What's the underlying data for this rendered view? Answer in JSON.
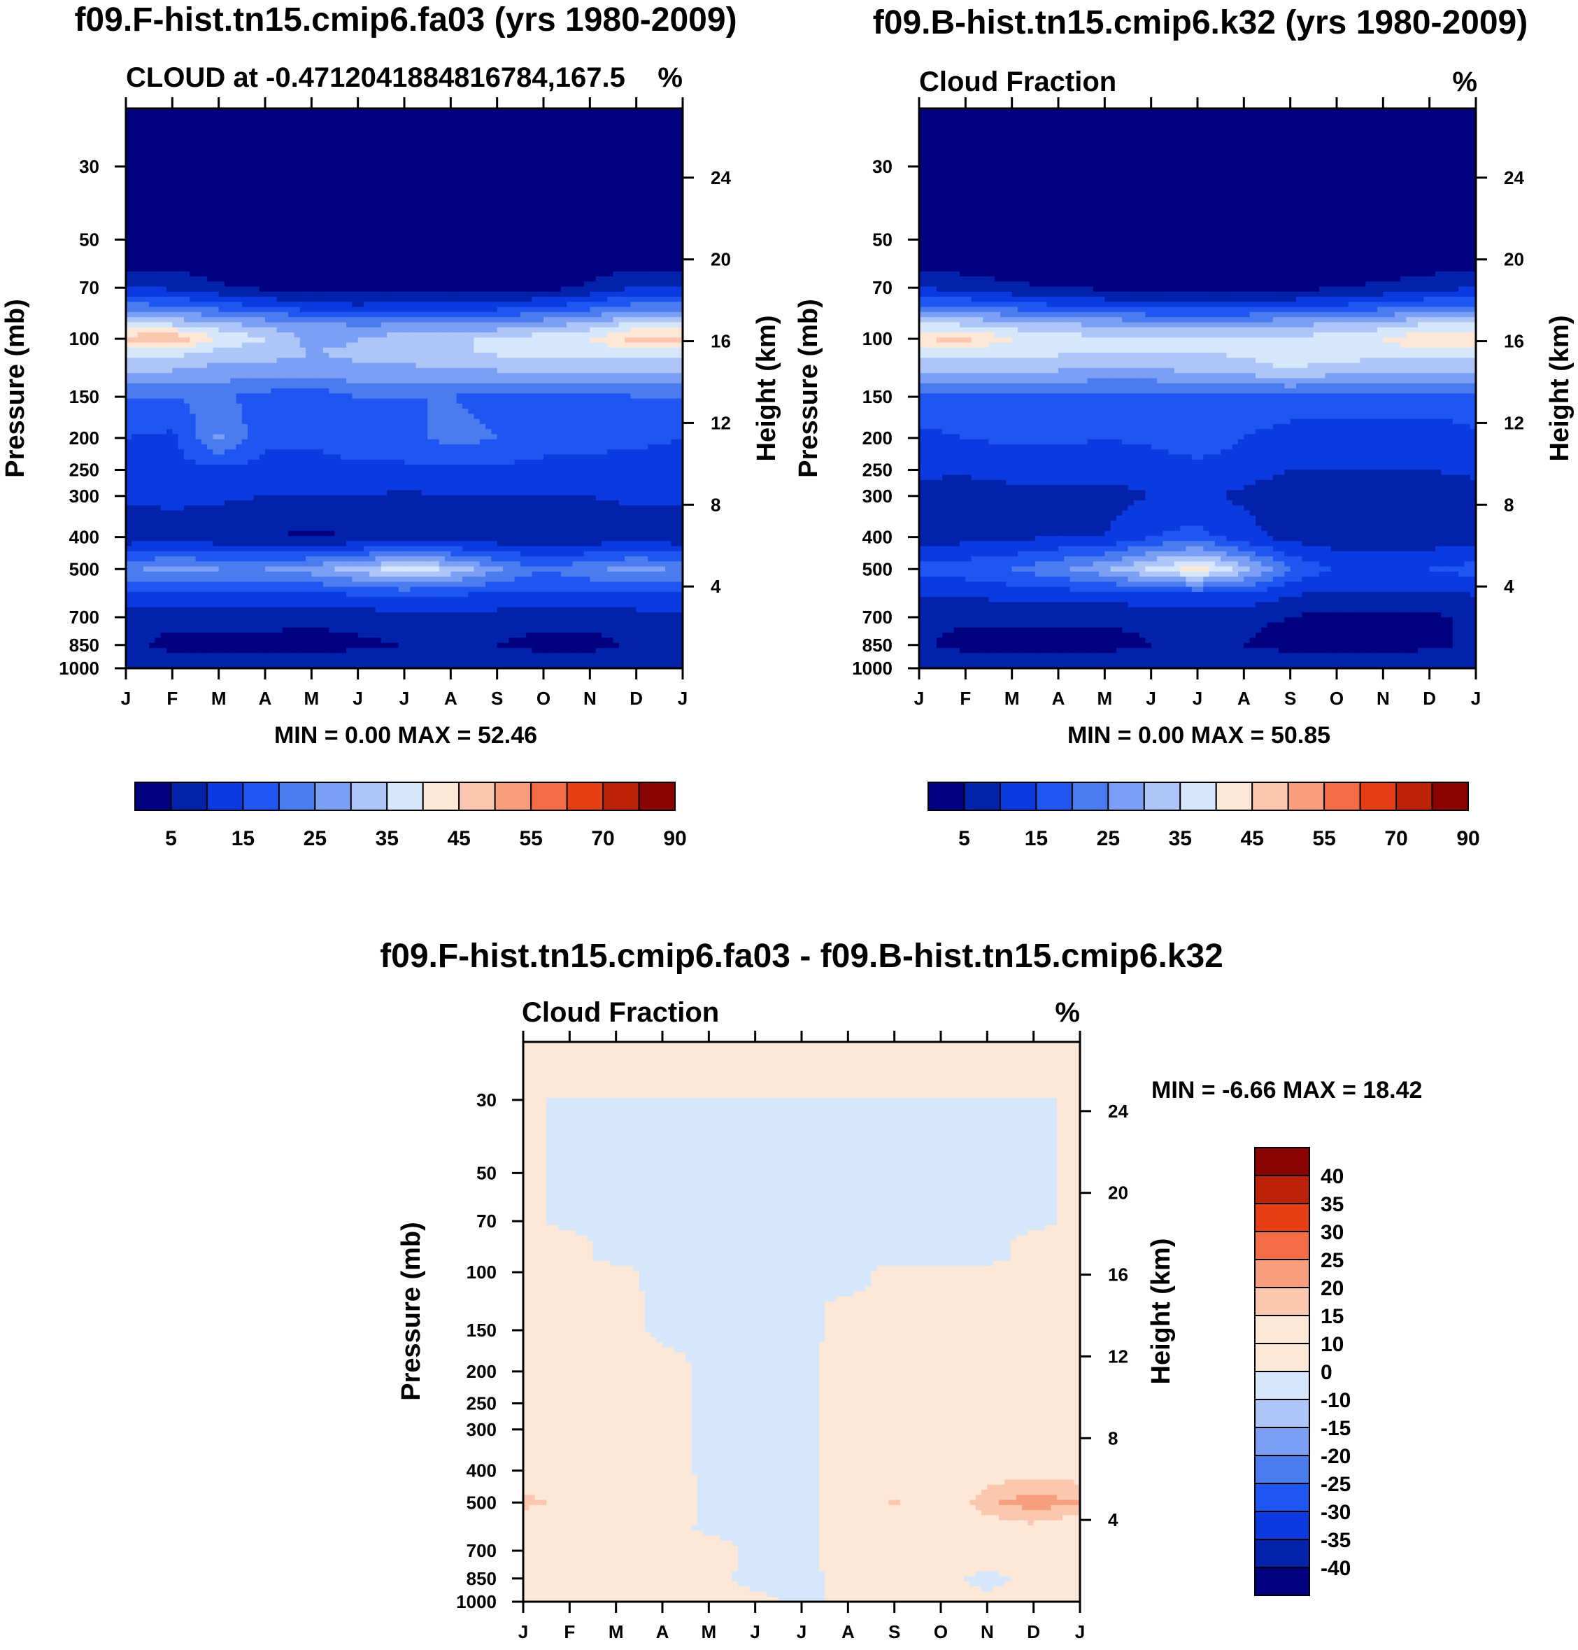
{
  "colors": {
    "abs_palette": [
      "#01017f",
      "#0222ab",
      "#0a3ae0",
      "#1f56f2",
      "#4a7cf0",
      "#7b9ff4",
      "#adc6f7",
      "#d6e7fb",
      "#fde7d7",
      "#fbc8af",
      "#f79f7c",
      "#f36c45",
      "#e63d14",
      "#bb2207",
      "#8a0303"
    ],
    "diff_palette": [
      "#01017f",
      "#0222ab",
      "#0a3ae0",
      "#1f56f2",
      "#4a7cf0",
      "#7b9ff4",
      "#adc6f7",
      "#d6e7fb",
      "#fde7d7",
      "#fbc8af",
      "#f79f7c",
      "#f36c45",
      "#e63d14",
      "#bb2207",
      "#8a0303"
    ]
  },
  "chart_data": [
    {
      "type": "heatmap",
      "id": "panel-a",
      "title": "f09.F-hist.tn15.cmip6.fa03 (yrs 1980-2009)",
      "subtitle_left": "CLOUD at -0.4712041884816784,167.5",
      "subtitle_right": "%",
      "ylabel": "Pressure (mb)",
      "ylabel_right": "Height (km)",
      "x": [
        "J",
        "F",
        "M",
        "A",
        "M",
        "J",
        "J",
        "A",
        "S",
        "O",
        "N",
        "D",
        "J"
      ],
      "y_ticks": [
        "30",
        "50",
        "70",
        "100",
        "150",
        "200",
        "250",
        "300",
        "400",
        "500",
        "700",
        "850",
        "1000"
      ],
      "y_ticks_right": [
        "24",
        "20",
        "16",
        "12",
        "8",
        "4"
      ],
      "ylim_mb": [
        20,
        1000
      ],
      "levels": [
        5,
        10,
        15,
        20,
        25,
        30,
        35,
        40,
        45,
        50,
        55,
        60,
        70,
        80,
        90
      ],
      "colorbar_ticks": [
        "5",
        "15",
        "25",
        "35",
        "45",
        "55",
        "70",
        "90"
      ],
      "min_label": "MIN =   0.00 MAX =  52.46",
      "profile_mb": [
        20,
        30,
        50,
        60,
        70,
        80,
        90,
        100,
        110,
        125,
        150,
        200,
        250,
        300,
        400,
        500,
        600,
        700,
        850,
        1000
      ],
      "values": [
        [
          0,
          0,
          0,
          4,
          10,
          22,
          35,
          48,
          38,
          30,
          20,
          15,
          13,
          11,
          6,
          24,
          14,
          8,
          7,
          10
        ],
        [
          0,
          0,
          0,
          4,
          9,
          21,
          34,
          50,
          37,
          30,
          20,
          14,
          13,
          11,
          8,
          27,
          14,
          7,
          3,
          10
        ],
        [
          0,
          0,
          0,
          2,
          6,
          18,
          31,
          40,
          33,
          28,
          21,
          26,
          14,
          11,
          6,
          25,
          13,
          7,
          3,
          10
        ],
        [
          0,
          0,
          0,
          0,
          4,
          15,
          28,
          35,
          32,
          28,
          18,
          16,
          13,
          10,
          5,
          25,
          13,
          7,
          3,
          10
        ],
        [
          0,
          0,
          0,
          0,
          3,
          12,
          27,
          28,
          30,
          28,
          16,
          16,
          13,
          10,
          4,
          28,
          13,
          7,
          2,
          10
        ],
        [
          0,
          0,
          0,
          0,
          2,
          11,
          24,
          30,
          31,
          29,
          20,
          18,
          14,
          10,
          5,
          32,
          15,
          7,
          4,
          10
        ],
        [
          0,
          0,
          0,
          0,
          2,
          12,
          25,
          33,
          32,
          29,
          20,
          18,
          14,
          9,
          5,
          38,
          15,
          8,
          5,
          10
        ],
        [
          0,
          0,
          0,
          0,
          2,
          12,
          25,
          34,
          34,
          29,
          20,
          22,
          14,
          10,
          5,
          34,
          15,
          8,
          5,
          10
        ],
        [
          0,
          0,
          0,
          0,
          3,
          13,
          26,
          36,
          36,
          30,
          18,
          20,
          14,
          10,
          6,
          26,
          14,
          8,
          5,
          10
        ],
        [
          0,
          0,
          0,
          0,
          3,
          15,
          28,
          38,
          36,
          30,
          18,
          18,
          13,
          10,
          6,
          20,
          14,
          7,
          3,
          10
        ],
        [
          0,
          0,
          0,
          2,
          6,
          18,
          31,
          40,
          36,
          31,
          18,
          17,
          13,
          10,
          6,
          24,
          14,
          7,
          3,
          10
        ],
        [
          0,
          0,
          0,
          4,
          10,
          22,
          36,
          48,
          38,
          30,
          20,
          16,
          13,
          11,
          7,
          27,
          14,
          8,
          6,
          10
        ],
        [
          0,
          0,
          0,
          4,
          10,
          22,
          35,
          48,
          38,
          30,
          20,
          15,
          13,
          11,
          6,
          24,
          14,
          8,
          7,
          10
        ]
      ]
    },
    {
      "type": "heatmap",
      "id": "panel-b",
      "title": "f09.B-hist.tn15.cmip6.k32 (yrs 1980-2009)",
      "subtitle_left": "Cloud Fraction",
      "subtitle_right": "%",
      "ylabel": "Pressure (mb)",
      "ylabel_right": "Height (km)",
      "x": [
        "J",
        "F",
        "M",
        "A",
        "M",
        "J",
        "J",
        "A",
        "S",
        "O",
        "N",
        "D",
        "J"
      ],
      "y_ticks": [
        "30",
        "50",
        "70",
        "100",
        "150",
        "200",
        "250",
        "300",
        "400",
        "500",
        "700",
        "850",
        "1000"
      ],
      "y_ticks_right": [
        "24",
        "20",
        "16",
        "12",
        "8",
        "4"
      ],
      "ylim_mb": [
        20,
        1000
      ],
      "levels": [
        5,
        10,
        15,
        20,
        25,
        30,
        35,
        40,
        45,
        50,
        55,
        60,
        70,
        80,
        90
      ],
      "colorbar_ticks": [
        "5",
        "15",
        "25",
        "35",
        "45",
        "55",
        "70",
        "90"
      ],
      "min_label": "MIN =   0.00 MAX =  50.85",
      "profile_mb": [
        20,
        30,
        50,
        60,
        70,
        80,
        90,
        100,
        110,
        125,
        150,
        200,
        250,
        300,
        400,
        500,
        600,
        700,
        850,
        1000
      ],
      "values": [
        [
          0,
          0,
          0,
          4,
          10,
          21,
          35,
          45,
          38,
          30,
          18,
          14,
          11,
          8,
          8,
          17,
          10,
          6,
          6,
          10
        ],
        [
          0,
          0,
          0,
          3,
          8,
          20,
          34,
          47,
          37,
          30,
          18,
          15,
          11,
          7,
          8,
          18,
          10,
          6,
          3,
          10
        ],
        [
          0,
          0,
          0,
          2,
          6,
          18,
          32,
          40,
          36,
          30,
          18,
          16,
          12,
          8,
          9,
          20,
          12,
          6,
          3,
          10
        ],
        [
          0,
          0,
          0,
          1,
          5,
          16,
          30,
          38,
          36,
          30,
          18,
          16,
          12,
          8,
          10,
          24,
          12,
          6,
          3,
          10
        ],
        [
          0,
          0,
          0,
          0,
          4,
          14,
          29,
          36,
          35,
          29,
          18,
          15,
          12,
          8,
          10,
          29,
          12,
          6,
          3,
          10
        ],
        [
          0,
          0,
          0,
          0,
          3,
          13,
          28,
          36,
          35,
          29,
          18,
          16,
          12,
          10,
          15,
          36,
          14,
          6,
          5,
          10
        ],
        [
          0,
          0,
          0,
          0,
          3,
          13,
          28,
          36,
          35,
          31,
          18,
          20,
          12,
          11,
          17,
          42,
          14,
          6,
          5,
          10
        ],
        [
          0,
          0,
          0,
          0,
          3,
          13,
          28,
          36,
          36,
          32,
          18,
          15,
          12,
          9,
          12,
          32,
          14,
          6,
          5,
          10
        ],
        [
          0,
          0,
          0,
          0,
          3,
          14,
          29,
          36,
          38,
          35,
          18,
          13,
          10,
          7,
          8,
          20,
          10,
          5,
          3,
          10
        ],
        [
          0,
          0,
          0,
          1,
          5,
          16,
          30,
          38,
          38,
          32,
          18,
          12,
          10,
          7,
          7,
          14,
          9,
          3,
          2,
          10
        ],
        [
          0,
          0,
          0,
          2,
          6,
          18,
          32,
          40,
          38,
          30,
          18,
          12,
          10,
          7,
          7,
          14,
          9,
          3,
          2,
          10
        ],
        [
          0,
          0,
          0,
          3,
          8,
          20,
          35,
          45,
          38,
          30,
          18,
          12,
          10,
          7,
          7,
          15,
          9,
          4,
          4,
          10
        ],
        [
          0,
          0,
          0,
          4,
          10,
          21,
          35,
          45,
          38,
          30,
          18,
          14,
          11,
          8,
          8,
          17,
          10,
          6,
          6,
          10
        ]
      ]
    },
    {
      "type": "heatmap",
      "id": "panel-c",
      "title": "f09.F-hist.tn15.cmip6.fa03 - f09.B-hist.tn15.cmip6.k32",
      "subtitle_left": "Cloud Fraction",
      "subtitle_right": "%",
      "ylabel": "Pressure (mb)",
      "ylabel_right": "Height (km)",
      "x": [
        "J",
        "F",
        "M",
        "A",
        "M",
        "J",
        "J",
        "A",
        "S",
        "O",
        "N",
        "D",
        "J"
      ],
      "y_ticks": [
        "30",
        "50",
        "70",
        "100",
        "150",
        "200",
        "250",
        "300",
        "400",
        "500",
        "700",
        "850",
        "1000"
      ],
      "y_ticks_right": [
        "24",
        "20",
        "16",
        "12",
        "8",
        "4"
      ],
      "ylim_mb": [
        20,
        1000
      ],
      "levels": [
        -40,
        -35,
        -30,
        -25,
        -20,
        -15,
        -10,
        0,
        10,
        15,
        20,
        25,
        30,
        35,
        40
      ],
      "colorbar_ticks": [
        "40",
        "35",
        "30",
        "25",
        "20",
        "15",
        "10",
        "0",
        "-10",
        "-15",
        "-20",
        "-25",
        "-30",
        "-35",
        "-40"
      ],
      "min_label": "MIN =  -6.66 MAX =  18.42",
      "profile_mb": [
        20,
        30,
        50,
        60,
        70,
        80,
        90,
        100,
        110,
        125,
        150,
        200,
        250,
        300,
        400,
        500,
        600,
        700,
        850,
        1000
      ],
      "values": [
        [
          0,
          0,
          1,
          1,
          1,
          1,
          1,
          2,
          2,
          2,
          2,
          2,
          2,
          2,
          4,
          12,
          4,
          2,
          1,
          1
        ],
        [
          0,
          0,
          -1,
          -1,
          -1,
          1,
          1,
          2,
          2,
          2,
          2,
          2,
          2,
          2,
          3,
          8,
          4,
          2,
          1,
          1
        ],
        [
          0,
          0,
          -1,
          -1,
          -1,
          -1,
          -1,
          1,
          1,
          2,
          2,
          2,
          2,
          2,
          2,
          6,
          3,
          2,
          1,
          1
        ],
        [
          0,
          0,
          -1,
          -1,
          -1,
          -1,
          -1,
          -1,
          -1,
          -1,
          -1,
          2,
          2,
          2,
          2,
          3,
          2,
          2,
          1,
          1
        ],
        [
          0,
          0,
          -1,
          -1,
          -1,
          -1,
          -1,
          -1,
          -1,
          -1,
          -1,
          -1,
          -1,
          -1,
          -1,
          -1,
          -1,
          2,
          1,
          1
        ],
        [
          0,
          0,
          -1,
          -1,
          -1,
          -1,
          -1,
          -1,
          -1,
          -1,
          -1,
          -1,
          -1,
          -1,
          -1,
          -1,
          -1,
          -1,
          -1,
          1
        ],
        [
          0,
          0,
          -1,
          -1,
          -1,
          -1,
          -1,
          -1,
          -1,
          -1,
          -1,
          -1,
          -1,
          -1,
          -1,
          -1,
          -1,
          -1,
          -1,
          -1
        ],
        [
          0,
          0,
          -1,
          -1,
          -1,
          -1,
          -1,
          -1,
          -1,
          1,
          1,
          2,
          2,
          2,
          2,
          2,
          2,
          2,
          1,
          1
        ],
        [
          0,
          0,
          -1,
          -1,
          -1,
          -1,
          -1,
          1,
          1,
          2,
          2,
          2,
          2,
          2,
          3,
          11,
          3,
          2,
          1,
          1
        ],
        [
          0,
          0,
          -1,
          -1,
          -1,
          -1,
          -1,
          1,
          1,
          2,
          2,
          2,
          2,
          2,
          2,
          3,
          2,
          2,
          1,
          1
        ],
        [
          0,
          0,
          -1,
          -1,
          -1,
          -1,
          -1,
          1,
          1,
          2,
          2,
          2,
          2,
          2,
          6,
          14,
          6,
          2,
          -1,
          1
        ],
        [
          0,
          0,
          -1,
          -1,
          -1,
          1,
          1,
          2,
          2,
          2,
          2,
          2,
          2,
          2,
          8,
          18,
          8,
          2,
          1,
          1
        ],
        [
          0,
          0,
          1,
          1,
          1,
          1,
          1,
          2,
          2,
          2,
          3,
          3,
          9,
          9,
          7,
          15,
          4,
          2,
          1,
          1
        ]
      ]
    }
  ]
}
